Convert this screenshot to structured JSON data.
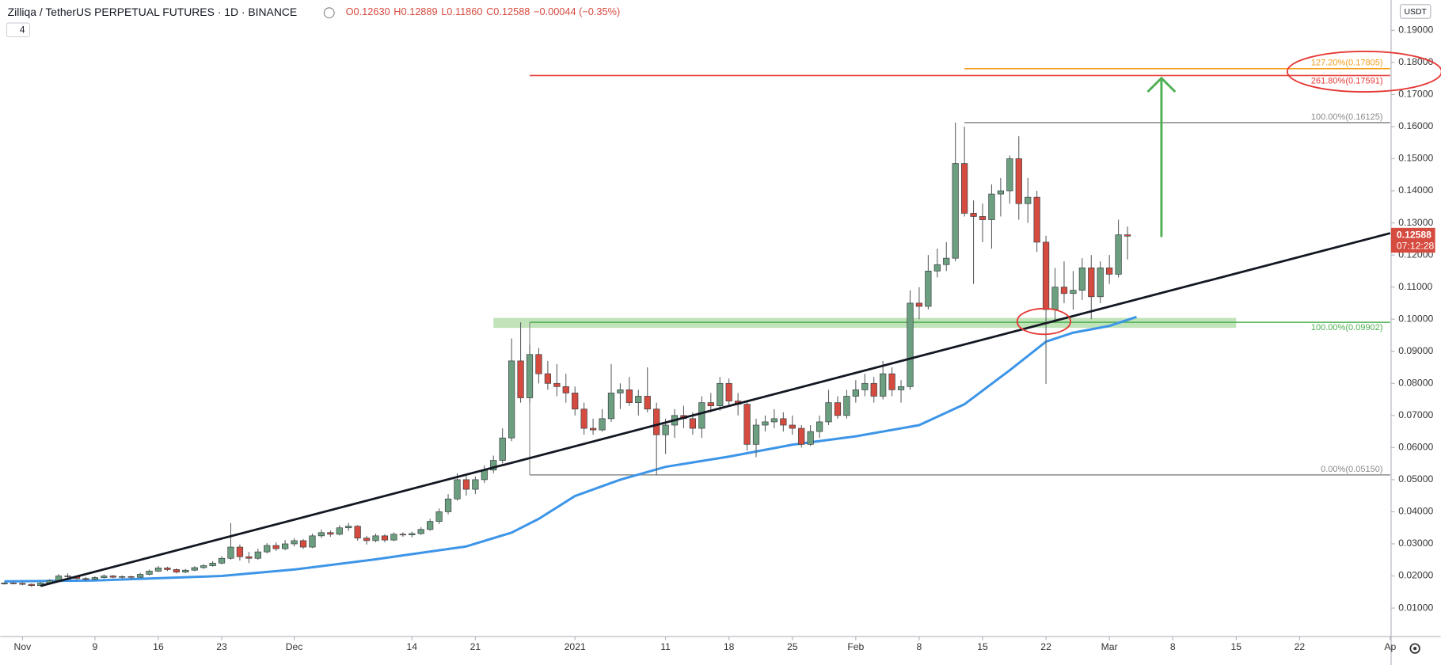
{
  "header": {
    "title": "Zilliqa / TetherUS PERPETUAL FUTURES · 1D · BINANCE",
    "interval_box": "4",
    "ohlc": [
      "O0.12630",
      "H0.12889",
      "L0.11860",
      "C0.12588",
      "−0.00044 (−0.35%)"
    ]
  },
  "chart_data": {
    "type": "candlestick",
    "x": [
      "2020-10-30",
      "2020-10-31",
      "2020-11-01",
      "2020-11-02",
      "2020-11-03",
      "2020-11-04",
      "2020-11-05",
      "2020-11-06",
      "2020-11-07",
      "2020-11-08",
      "2020-11-09",
      "2020-11-10",
      "2020-11-11",
      "2020-11-12",
      "2020-11-13",
      "2020-11-14",
      "2020-11-15",
      "2020-11-16",
      "2020-11-17",
      "2020-11-18",
      "2020-11-19",
      "2020-11-20",
      "2020-11-21",
      "2020-11-22",
      "2020-11-23",
      "2020-11-24",
      "2020-11-25",
      "2020-11-26",
      "2020-11-27",
      "2020-11-28",
      "2020-11-29",
      "2020-11-30",
      "2020-12-01",
      "2020-12-02",
      "2020-12-03",
      "2020-12-04",
      "2020-12-05",
      "2020-12-06",
      "2020-12-07",
      "2020-12-08",
      "2020-12-09",
      "2020-12-10",
      "2020-12-11",
      "2020-12-12",
      "2020-12-13",
      "2020-12-14",
      "2020-12-15",
      "2020-12-16",
      "2020-12-17",
      "2020-12-18",
      "2020-12-19",
      "2020-12-20",
      "2020-12-21",
      "2020-12-22",
      "2020-12-23",
      "2020-12-24",
      "2020-12-25",
      "2020-12-26",
      "2020-12-27",
      "2020-12-28",
      "2020-12-29",
      "2020-12-30",
      "2020-12-31",
      "2021-01-01",
      "2021-01-02",
      "2021-01-03",
      "2021-01-04",
      "2021-01-05",
      "2021-01-06",
      "2021-01-07",
      "2021-01-08",
      "2021-01-09",
      "2021-01-10",
      "2021-01-11",
      "2021-01-12",
      "2021-01-13",
      "2021-01-14",
      "2021-01-15",
      "2021-01-16",
      "2021-01-17",
      "2021-01-18",
      "2021-01-19",
      "2021-01-20",
      "2021-01-21",
      "2021-01-22",
      "2021-01-23",
      "2021-01-24",
      "2021-01-25",
      "2021-01-26",
      "2021-01-27",
      "2021-01-28",
      "2021-01-29",
      "2021-01-30",
      "2021-01-31",
      "2021-02-01",
      "2021-02-02",
      "2021-02-03",
      "2021-02-04",
      "2021-02-05",
      "2021-02-06",
      "2021-02-07",
      "2021-02-08",
      "2021-02-09",
      "2021-02-10",
      "2021-02-11",
      "2021-02-12",
      "2021-02-13",
      "2021-02-14",
      "2021-02-15",
      "2021-02-16",
      "2021-02-17",
      "2021-02-18",
      "2021-02-19",
      "2021-02-20",
      "2021-02-21",
      "2021-02-22",
      "2021-02-23",
      "2021-02-24",
      "2021-02-25",
      "2021-02-26",
      "2021-02-27",
      "2021-02-28",
      "2021-03-01",
      "2021-03-02",
      "2021-03-03",
      "2021-03-04"
    ],
    "ohlc": [
      [
        0.0175,
        0.0181,
        0.0173,
        0.0178
      ],
      [
        0.0178,
        0.0182,
        0.0174,
        0.0177
      ],
      [
        0.0177,
        0.018,
        0.0171,
        0.0174
      ],
      [
        0.0174,
        0.0177,
        0.0166,
        0.017
      ],
      [
        0.017,
        0.0181,
        0.0168,
        0.0178
      ],
      [
        0.0178,
        0.019,
        0.0176,
        0.0185
      ],
      [
        0.0185,
        0.0206,
        0.0183,
        0.02
      ],
      [
        0.02,
        0.0208,
        0.0192,
        0.0198
      ],
      [
        0.0198,
        0.0201,
        0.0188,
        0.0192
      ],
      [
        0.0192,
        0.0197,
        0.0185,
        0.019
      ],
      [
        0.019,
        0.0199,
        0.0187,
        0.0195
      ],
      [
        0.0195,
        0.0205,
        0.0192,
        0.02
      ],
      [
        0.02,
        0.0203,
        0.0193,
        0.0196
      ],
      [
        0.0196,
        0.0202,
        0.0191,
        0.0198
      ],
      [
        0.0198,
        0.0201,
        0.019,
        0.0196
      ],
      [
        0.0196,
        0.021,
        0.0194,
        0.0205
      ],
      [
        0.0205,
        0.022,
        0.0202,
        0.0215
      ],
      [
        0.0215,
        0.0231,
        0.0212,
        0.0225
      ],
      [
        0.0225,
        0.0229,
        0.0215,
        0.022
      ],
      [
        0.022,
        0.0224,
        0.0208,
        0.0212
      ],
      [
        0.0212,
        0.0222,
        0.0209,
        0.0218
      ],
      [
        0.0218,
        0.023,
        0.0215,
        0.0226
      ],
      [
        0.0226,
        0.0237,
        0.0222,
        0.0232
      ],
      [
        0.0232,
        0.0246,
        0.0229,
        0.024
      ],
      [
        0.024,
        0.0262,
        0.0236,
        0.0255
      ],
      [
        0.0255,
        0.0365,
        0.025,
        0.029
      ],
      [
        0.029,
        0.0298,
        0.0248,
        0.026
      ],
      [
        0.026,
        0.0275,
        0.024,
        0.0255
      ],
      [
        0.0255,
        0.0285,
        0.025,
        0.0275
      ],
      [
        0.0275,
        0.0302,
        0.027,
        0.0295
      ],
      [
        0.0295,
        0.0305,
        0.0278,
        0.0285
      ],
      [
        0.0285,
        0.0312,
        0.028,
        0.03
      ],
      [
        0.03,
        0.0318,
        0.0292,
        0.031
      ],
      [
        0.031,
        0.0315,
        0.0284,
        0.029
      ],
      [
        0.029,
        0.0332,
        0.0287,
        0.0325
      ],
      [
        0.0325,
        0.0345,
        0.0318,
        0.0335
      ],
      [
        0.0335,
        0.0342,
        0.0322,
        0.033
      ],
      [
        0.033,
        0.0358,
        0.0326,
        0.035
      ],
      [
        0.035,
        0.0365,
        0.034,
        0.0355
      ],
      [
        0.0355,
        0.0358,
        0.031,
        0.0318
      ],
      [
        0.0318,
        0.0325,
        0.0298,
        0.031
      ],
      [
        0.031,
        0.0332,
        0.0305,
        0.0325
      ],
      [
        0.0325,
        0.033,
        0.0305,
        0.0312
      ],
      [
        0.0312,
        0.0336,
        0.0308,
        0.033
      ],
      [
        0.033,
        0.0336,
        0.0322,
        0.0328
      ],
      [
        0.0328,
        0.0338,
        0.032,
        0.0332
      ],
      [
        0.0332,
        0.0352,
        0.0328,
        0.0345
      ],
      [
        0.0345,
        0.0378,
        0.034,
        0.037
      ],
      [
        0.037,
        0.041,
        0.0362,
        0.04
      ],
      [
        0.04,
        0.0455,
        0.0392,
        0.044
      ],
      [
        0.044,
        0.052,
        0.0435,
        0.05
      ],
      [
        0.05,
        0.0512,
        0.045,
        0.047
      ],
      [
        0.047,
        0.051,
        0.0455,
        0.05
      ],
      [
        0.05,
        0.0545,
        0.049,
        0.053
      ],
      [
        0.053,
        0.0575,
        0.052,
        0.056
      ],
      [
        0.056,
        0.066,
        0.055,
        0.063
      ],
      [
        0.063,
        0.094,
        0.062,
        0.087
      ],
      [
        0.087,
        0.099,
        0.074,
        0.0755
      ],
      [
        0.0755,
        0.092,
        0.074,
        0.089
      ],
      [
        0.089,
        0.091,
        0.08,
        0.083
      ],
      [
        0.083,
        0.087,
        0.078,
        0.08
      ],
      [
        0.08,
        0.086,
        0.076,
        0.079
      ],
      [
        0.079,
        0.083,
        0.074,
        0.077
      ],
      [
        0.077,
        0.079,
        0.07,
        0.072
      ],
      [
        0.072,
        0.074,
        0.064,
        0.066
      ],
      [
        0.066,
        0.069,
        0.064,
        0.0655
      ],
      [
        0.0655,
        0.072,
        0.065,
        0.069
      ],
      [
        0.069,
        0.086,
        0.068,
        0.077
      ],
      [
        0.077,
        0.08,
        0.072,
        0.078
      ],
      [
        0.078,
        0.082,
        0.073,
        0.074
      ],
      [
        0.074,
        0.078,
        0.07,
        0.076
      ],
      [
        0.076,
        0.085,
        0.071,
        0.072
      ],
      [
        0.072,
        0.074,
        0.0515,
        0.064
      ],
      [
        0.064,
        0.069,
        0.058,
        0.067
      ],
      [
        0.067,
        0.072,
        0.063,
        0.07
      ],
      [
        0.07,
        0.073,
        0.066,
        0.069
      ],
      [
        0.069,
        0.071,
        0.064,
        0.066
      ],
      [
        0.066,
        0.076,
        0.063,
        0.074
      ],
      [
        0.074,
        0.077,
        0.071,
        0.073
      ],
      [
        0.073,
        0.082,
        0.0715,
        0.08
      ],
      [
        0.08,
        0.0815,
        0.073,
        0.0745
      ],
      [
        0.0745,
        0.077,
        0.07,
        0.0735
      ],
      [
        0.0735,
        0.0745,
        0.059,
        0.061
      ],
      [
        0.061,
        0.069,
        0.057,
        0.067
      ],
      [
        0.067,
        0.07,
        0.065,
        0.068
      ],
      [
        0.068,
        0.072,
        0.066,
        0.069
      ],
      [
        0.069,
        0.071,
        0.065,
        0.067
      ],
      [
        0.067,
        0.07,
        0.064,
        0.066
      ],
      [
        0.066,
        0.067,
        0.06,
        0.061
      ],
      [
        0.061,
        0.067,
        0.0605,
        0.065
      ],
      [
        0.065,
        0.07,
        0.063,
        0.068
      ],
      [
        0.068,
        0.078,
        0.067,
        0.074
      ],
      [
        0.074,
        0.076,
        0.069,
        0.07
      ],
      [
        0.07,
        0.078,
        0.069,
        0.076
      ],
      [
        0.076,
        0.081,
        0.074,
        0.078
      ],
      [
        0.078,
        0.083,
        0.076,
        0.08
      ],
      [
        0.08,
        0.082,
        0.074,
        0.076
      ],
      [
        0.076,
        0.087,
        0.075,
        0.083
      ],
      [
        0.083,
        0.085,
        0.076,
        0.078
      ],
      [
        0.078,
        0.081,
        0.074,
        0.079
      ],
      [
        0.079,
        0.109,
        0.078,
        0.105
      ],
      [
        0.105,
        0.11,
        0.1,
        0.104
      ],
      [
        0.104,
        0.12,
        0.103,
        0.115
      ],
      [
        0.115,
        0.122,
        0.113,
        0.117
      ],
      [
        0.117,
        0.124,
        0.115,
        0.119
      ],
      [
        0.119,
        0.16125,
        0.118,
        0.1485
      ],
      [
        0.1485,
        0.16,
        0.132,
        0.133
      ],
      [
        0.133,
        0.137,
        0.111,
        0.132
      ],
      [
        0.132,
        0.136,
        0.124,
        0.131
      ],
      [
        0.131,
        0.142,
        0.122,
        0.139
      ],
      [
        0.139,
        0.144,
        0.132,
        0.14
      ],
      [
        0.14,
        0.151,
        0.136,
        0.15
      ],
      [
        0.15,
        0.157,
        0.131,
        0.136
      ],
      [
        0.136,
        0.144,
        0.13,
        0.138
      ],
      [
        0.138,
        0.14,
        0.121,
        0.124
      ],
      [
        0.124,
        0.126,
        0.0798,
        0.103
      ],
      [
        0.103,
        0.116,
        0.099,
        0.11
      ],
      [
        0.11,
        0.118,
        0.105,
        0.108
      ],
      [
        0.108,
        0.115,
        0.103,
        0.109
      ],
      [
        0.109,
        0.119,
        0.106,
        0.116
      ],
      [
        0.116,
        0.12,
        0.1,
        0.107
      ],
      [
        0.107,
        0.118,
        0.105,
        0.116
      ],
      [
        0.116,
        0.12,
        0.111,
        0.114
      ],
      [
        0.114,
        0.131,
        0.113,
        0.1263
      ],
      [
        0.1263,
        0.12889,
        0.1186,
        0.12588
      ]
    ],
    "up_color": "#6b9f80",
    "down_color": "#d64b3f",
    "xlim": [
      "2020-10-30",
      "2021-04-01"
    ],
    "ylim": [
      0.00113,
      0.19945
    ],
    "yticks": [
      {
        "value": 0.01,
        "label": "0.01000"
      },
      {
        "value": 0.02,
        "label": "0.02000"
      },
      {
        "value": 0.03,
        "label": "0.03000"
      },
      {
        "value": 0.04,
        "label": "0.04000"
      },
      {
        "value": 0.05,
        "label": "0.05000"
      },
      {
        "value": 0.06,
        "label": "0.06000"
      },
      {
        "value": 0.07,
        "label": "0.07000"
      },
      {
        "value": 0.08,
        "label": "0.08000"
      },
      {
        "value": 0.09,
        "label": "0.09000"
      },
      {
        "value": 0.1,
        "label": "0.10000"
      },
      {
        "value": 0.11,
        "label": "0.11000"
      },
      {
        "value": 0.12,
        "label": "0.12000"
      },
      {
        "value": 0.13,
        "label": "0.13000"
      },
      {
        "value": 0.14,
        "label": "0.14000"
      },
      {
        "value": 0.15,
        "label": "0.15000"
      },
      {
        "value": 0.16,
        "label": "0.16000"
      },
      {
        "value": 0.17,
        "label": "0.17000"
      },
      {
        "value": 0.18,
        "label": "0.18000"
      },
      {
        "value": 0.19,
        "label": "0.19000"
      }
    ],
    "xticks": [
      {
        "value": "2020-11-01",
        "label": "Nov"
      },
      {
        "value": "2020-11-09",
        "label": "9"
      },
      {
        "value": "2020-11-16",
        "label": "16"
      },
      {
        "value": "2020-11-23",
        "label": "23"
      },
      {
        "value": "2020-12-01",
        "label": "Dec"
      },
      {
        "value": "2020-12-14",
        "label": "14"
      },
      {
        "value": "2020-12-21",
        "label": "21"
      },
      {
        "value": "2021-01-01",
        "label": "2021"
      },
      {
        "value": "2021-01-11",
        "label": "11"
      },
      {
        "value": "2021-01-18",
        "label": "18"
      },
      {
        "value": "2021-01-25",
        "label": "25"
      },
      {
        "value": "2021-02-01",
        "label": "Feb"
      },
      {
        "value": "2021-02-08",
        "label": "8"
      },
      {
        "value": "2021-02-15",
        "label": "15"
      },
      {
        "value": "2021-02-22",
        "label": "22"
      },
      {
        "value": "2021-03-01",
        "label": "Mar"
      },
      {
        "value": "2021-03-08",
        "label": "8"
      },
      {
        "value": "2021-03-15",
        "label": "15"
      },
      {
        "value": "2021-03-22",
        "label": "22"
      },
      {
        "value": "2021-04-01",
        "label": "Ap"
      }
    ],
    "grid": false,
    "currency": "USDT",
    "last_price": {
      "label": "0.12588",
      "countdown": "07:12:28",
      "color": "#d64b3f"
    },
    "ma": {
      "color": "#3d95e8",
      "x": [
        "2020-10-30",
        "2020-11-09",
        "2020-11-23",
        "2020-12-01",
        "2020-12-10",
        "2020-12-20",
        "2020-12-25",
        "2020-12-28",
        "2021-01-01",
        "2021-01-06",
        "2021-01-11",
        "2021-01-18",
        "2021-01-25",
        "2021-02-01",
        "2021-02-08",
        "2021-02-13",
        "2021-02-18",
        "2021-02-22",
        "2021-02-25",
        "2021-03-01",
        "2021-03-04"
      ],
      "values": [
        0.0183,
        0.0186,
        0.02,
        0.022,
        0.0252,
        0.0292,
        0.0335,
        0.0378,
        0.0449,
        0.05,
        0.054,
        0.0572,
        0.0609,
        0.0635,
        0.067,
        0.0735,
        0.0841,
        0.093,
        0.0958,
        0.0979,
        0.1007
      ]
    },
    "trendline": {
      "color": "#131722",
      "x": [
        "2020-11-03",
        "2021-04-01"
      ],
      "values": [
        0.0169,
        0.1268
      ]
    },
    "zone": {
      "color": "#8ccc80",
      "x": [
        "2020-12-23",
        "2021-03-15"
      ],
      "values": [
        0.0973,
        0.1004
      ]
    },
    "levels": [
      {
        "label": "0.00%(0.05150)",
        "value": 0.0515,
        "from": "2020-12-27",
        "color": "#8a8a8a",
        "label_position": "above"
      },
      {
        "label": "100.00%(0.09902)",
        "value": 0.09902,
        "from": "2020-12-27",
        "color": "#4caf50",
        "label_position": "below"
      },
      {
        "label": "261.80%(0.17591)",
        "value": 0.17591,
        "from": "2020-12-27",
        "color": "#e53935",
        "label_position": "below"
      },
      {
        "label": "100.00%(0.16125)",
        "value": 0.16125,
        "from": "2021-02-13",
        "color": "#8a8a8a",
        "label_position": "above"
      },
      {
        "label": "127.20%(0.17805)",
        "value": 0.17805,
        "from": "2021-02-13",
        "color": "#f59c1a",
        "label_position": "above"
      }
    ]
  }
}
